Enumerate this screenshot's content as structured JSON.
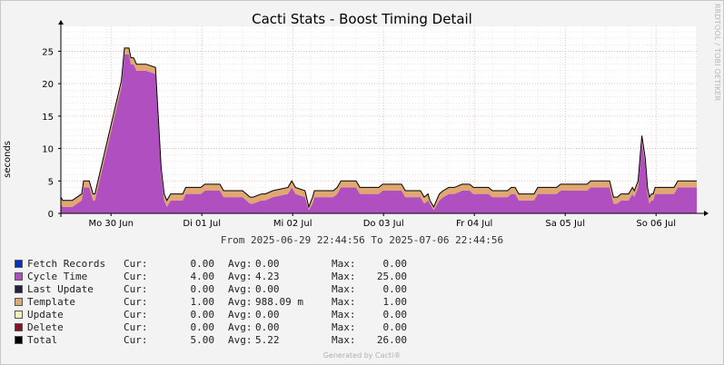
{
  "title": "Cacti Stats - Boost Timing Detail",
  "watermark": "RRDTOOL / TOBI OETIKER",
  "date_range": "From 2025-06-29 22:44:56 To 2025-07-06 22:44:56",
  "footer": "Generated by Cacti®",
  "colors": {
    "template": "#e0a870",
    "cycle_time": "#b050c0",
    "total_line": "#000000",
    "grid_major": "#e8b0b0",
    "grid_minor": "#d8d8d8",
    "background": "#f3f3f3",
    "canvas": "#ffffff"
  },
  "chart_data": {
    "type": "area",
    "stacked": true,
    "ylabel": "seconds",
    "ylim": [
      0,
      28
    ],
    "yticks": [
      0,
      5,
      10,
      15,
      20,
      25
    ],
    "x_unit": "hours since 2025-06-29 22:44:56",
    "xlim": [
      0,
      168
    ],
    "xticks": [
      {
        "at": 13.25,
        "label": "Mo 30 Jun"
      },
      {
        "at": 37.25,
        "label": "Di 01 Jul"
      },
      {
        "at": 61.25,
        "label": "Mi 02 Jul"
      },
      {
        "at": 85.25,
        "label": "Do 03 Jul"
      },
      {
        "at": 109.25,
        "label": "Fr 04 Jul"
      },
      {
        "at": 133.25,
        "label": "Sa 05 Jul"
      },
      {
        "at": 157.25,
        "label": "So 06 Jul"
      }
    ],
    "x": [
      0,
      0.5,
      3,
      5.5,
      6,
      7.5,
      8.5,
      9,
      16,
      16.8,
      18,
      18.5,
      19.2,
      20,
      21,
      22.5,
      25,
      26.5,
      27.3,
      28,
      29,
      30,
      31.3,
      32.2,
      33,
      33.5,
      36,
      37,
      38,
      42,
      43,
      48,
      50,
      50.8,
      53,
      54,
      56,
      60,
      61,
      62,
      64.5,
      65.5,
      66.5,
      67,
      68.5,
      69,
      72,
      73,
      74,
      78,
      79,
      84,
      85,
      90,
      91,
      95,
      96,
      97,
      97.5,
      98.5,
      100,
      101,
      102.5,
      104,
      106,
      108,
      109,
      113,
      114,
      118,
      119,
      120,
      121,
      125,
      126,
      131,
      132,
      139,
      140,
      145,
      146,
      147,
      148,
      150,
      151,
      151.5,
      152.5,
      153.5,
      154.4,
      155,
      155.5,
      156,
      156.5,
      157,
      158,
      162,
      163,
      168
    ],
    "series": [
      {
        "name": "Fetch Records",
        "color": "#0033cc",
        "values": [
          0,
          0,
          0,
          0,
          0,
          0,
          0,
          0,
          0,
          0,
          0,
          0,
          0,
          0,
          0,
          0,
          0,
          0,
          0,
          0,
          0,
          0,
          0,
          0,
          0,
          0,
          0,
          0,
          0,
          0,
          0,
          0,
          0,
          0,
          0,
          0,
          0,
          0,
          0,
          0,
          0,
          0,
          0,
          0,
          0,
          0,
          0,
          0,
          0,
          0,
          0,
          0,
          0,
          0,
          0,
          0,
          0,
          0,
          0,
          0,
          0,
          0,
          0,
          0,
          0,
          0,
          0,
          0,
          0,
          0,
          0,
          0,
          0,
          0,
          0,
          0,
          0,
          0,
          0,
          0,
          0,
          0,
          0,
          0,
          0,
          0,
          0,
          0,
          0,
          0,
          0,
          0,
          0,
          0,
          0,
          0,
          0,
          0
        ],
        "cur": "0.00",
        "avg": "0.00",
        "max": "0.00"
      },
      {
        "name": "Cycle Time",
        "color": "#b050c0",
        "values": [
          1.5,
          1,
          1,
          2,
          4,
          4,
          2,
          2,
          19.5,
          24.5,
          24.5,
          23,
          23,
          22,
          22,
          22,
          21.5,
          6,
          2,
          1,
          2,
          2,
          2,
          2,
          3,
          3,
          3,
          3,
          3.5,
          3.5,
          2.5,
          2.5,
          1.5,
          1.5,
          2,
          2,
          2.5,
          3,
          4,
          3,
          2.5,
          0.5,
          1.5,
          2.5,
          2.5,
          2.5,
          2.5,
          3,
          4,
          4,
          3,
          3,
          3.5,
          3.5,
          2.5,
          2.5,
          1.5,
          2,
          1.5,
          0.5,
          2,
          2.5,
          3,
          3,
          3.5,
          3.5,
          3,
          3,
          2.5,
          2.5,
          3,
          3,
          2,
          2,
          3,
          3,
          3.5,
          3.5,
          4,
          4,
          1.5,
          1.5,
          2,
          2,
          3,
          2.5,
          4,
          11,
          7.5,
          3,
          1.5,
          2,
          2,
          3,
          3,
          3,
          4,
          4
        ],
        "cur": "4.00",
        "avg": "4.23",
        "max": "25.00"
      },
      {
        "name": "Last Update",
        "color": "#222244",
        "values": [
          0,
          0,
          0,
          0,
          0,
          0,
          0,
          0,
          0,
          0,
          0,
          0,
          0,
          0,
          0,
          0,
          0,
          0,
          0,
          0,
          0,
          0,
          0,
          0,
          0,
          0,
          0,
          0,
          0,
          0,
          0,
          0,
          0,
          0,
          0,
          0,
          0,
          0,
          0,
          0,
          0,
          0,
          0,
          0,
          0,
          0,
          0,
          0,
          0,
          0,
          0,
          0,
          0,
          0,
          0,
          0,
          0,
          0,
          0,
          0,
          0,
          0,
          0,
          0,
          0,
          0,
          0,
          0,
          0,
          0,
          0,
          0,
          0,
          0,
          0,
          0,
          0,
          0,
          0,
          0,
          0,
          0,
          0,
          0,
          0,
          0,
          0,
          0,
          0,
          0,
          0,
          0,
          0,
          0,
          0,
          0,
          0,
          0
        ],
        "cur": "0.00",
        "avg": "0.00",
        "max": "0.00"
      },
      {
        "name": "Template",
        "color": "#e0a870",
        "values": [
          1,
          1,
          1,
          1,
          1,
          1,
          1,
          1,
          1,
          1,
          1,
          1,
          1,
          1,
          1,
          1,
          1,
          1,
          1,
          1,
          1,
          1,
          1,
          1,
          1,
          1,
          1,
          1,
          1,
          1,
          1,
          1,
          1,
          1,
          1,
          1,
          1,
          1,
          1,
          1,
          1,
          0.5,
          1,
          1,
          1,
          1,
          1,
          1,
          1,
          1,
          1,
          1,
          1,
          1,
          1,
          1,
          1,
          1,
          0.5,
          0.5,
          1,
          1,
          1,
          1,
          1,
          1,
          1,
          1,
          1,
          1,
          1,
          1,
          1,
          1,
          1,
          1,
          1,
          1,
          1,
          1,
          1,
          1,
          1,
          1,
          1,
          1,
          1,
          1,
          1,
          1,
          1,
          1,
          1,
          1,
          1,
          1,
          1,
          1
        ],
        "cur": "1.00",
        "avg": "988.09 m",
        "max": "1.00"
      },
      {
        "name": "Update",
        "color": "#f0f0b8",
        "values": [
          0,
          0,
          0,
          0,
          0,
          0,
          0,
          0,
          0,
          0,
          0,
          0,
          0,
          0,
          0,
          0,
          0,
          0,
          0,
          0,
          0,
          0,
          0,
          0,
          0,
          0,
          0,
          0,
          0,
          0,
          0,
          0,
          0,
          0,
          0,
          0,
          0,
          0,
          0,
          0,
          0,
          0,
          0,
          0,
          0,
          0,
          0,
          0,
          0,
          0,
          0,
          0,
          0,
          0,
          0,
          0,
          0,
          0,
          0,
          0,
          0,
          0,
          0,
          0,
          0,
          0,
          0,
          0,
          0,
          0,
          0,
          0,
          0,
          0,
          0,
          0,
          0,
          0,
          0,
          0,
          0,
          0,
          0,
          0,
          0,
          0,
          0,
          0,
          0,
          0,
          0,
          0,
          0,
          0,
          0,
          0,
          0,
          0
        ],
        "cur": "0.00",
        "avg": "0.00",
        "max": "0.00"
      },
      {
        "name": "Delete",
        "color": "#8b1020",
        "values": [
          0,
          0,
          0,
          0,
          0,
          0,
          0,
          0,
          0,
          0,
          0,
          0,
          0,
          0,
          0,
          0,
          0,
          0,
          0,
          0,
          0,
          0,
          0,
          0,
          0,
          0,
          0,
          0,
          0,
          0,
          0,
          0,
          0,
          0,
          0,
          0,
          0,
          0,
          0,
          0,
          0,
          0,
          0,
          0,
          0,
          0,
          0,
          0,
          0,
          0,
          0,
          0,
          0,
          0,
          0,
          0,
          0,
          0,
          0,
          0,
          0,
          0,
          0,
          0,
          0,
          0,
          0,
          0,
          0,
          0,
          0,
          0,
          0,
          0,
          0,
          0,
          0,
          0,
          0,
          0,
          0,
          0,
          0,
          0,
          0,
          0,
          0,
          0,
          0,
          0,
          0,
          0,
          0,
          0,
          0,
          0,
          0,
          0
        ],
        "cur": "0.00",
        "avg": "0.00",
        "max": "0.00"
      },
      {
        "name": "Total",
        "color": "#000000",
        "line": true,
        "values": [
          2.5,
          2,
          2,
          3,
          5,
          5,
          3,
          3,
          20.5,
          25.5,
          25.5,
          24,
          24,
          23,
          23,
          23,
          22.5,
          7,
          3,
          2,
          3,
          3,
          3,
          3,
          4,
          4,
          4,
          4,
          4.5,
          4.5,
          3.5,
          3.5,
          2.5,
          2.5,
          3,
          3,
          3.5,
          4,
          5,
          4,
          3.5,
          1,
          2.5,
          3.5,
          3.5,
          3.5,
          3.5,
          4,
          5,
          5,
          4,
          4,
          4.5,
          4.5,
          3.5,
          3.5,
          2.5,
          3,
          2,
          1,
          3,
          3.5,
          4,
          4,
          4.5,
          4.5,
          4,
          4,
          3.5,
          3.5,
          4,
          4,
          3,
          3,
          4,
          4,
          4.5,
          4.5,
          5,
          5,
          2.5,
          2.5,
          3,
          3,
          4,
          3.5,
          5,
          12,
          8.5,
          4,
          2.5,
          3,
          3,
          4,
          4,
          4,
          5,
          5
        ],
        "cur": "5.00",
        "avg": "5.22",
        "max": "26.00"
      }
    ]
  },
  "legend": {
    "cur_label": "Cur:",
    "avg_label": "Avg:",
    "max_label": "Max:"
  }
}
